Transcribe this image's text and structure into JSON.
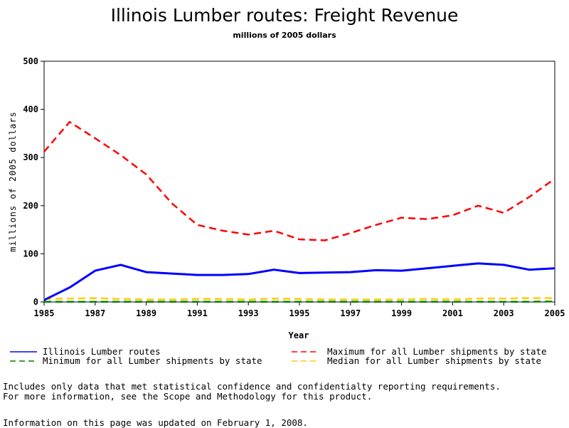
{
  "chart_data": {
    "type": "line",
    "title": "Illinois Lumber routes: Freight Revenue",
    "subtitle": "millions of 2005 dollars",
    "xlabel": "Year",
    "ylabel": "millions of 2005 dollars",
    "xlim": [
      1985,
      2005
    ],
    "ylim": [
      0,
      500
    ],
    "x_ticks": [
      "1985",
      "1987",
      "1989",
      "1991",
      "1993",
      "1995",
      "1997",
      "1999",
      "2001",
      "2003",
      "2005"
    ],
    "y_ticks": [
      "0",
      "100",
      "200",
      "300",
      "400",
      "500"
    ],
    "grid": false,
    "legend_placement": "bottom",
    "x": [
      1985,
      1986,
      1987,
      1988,
      1989,
      1990,
      1991,
      1992,
      1993,
      1994,
      1995,
      1996,
      1997,
      1998,
      1999,
      2000,
      2001,
      2002,
      2003,
      2004,
      2005
    ],
    "series": [
      {
        "name": "Illinois Lumber routes",
        "color": "#0000ff",
        "style": "solid",
        "values": [
          4,
          30,
          65,
          77,
          62,
          59,
          56,
          56,
          58,
          67,
          60,
          61,
          62,
          66,
          65,
          70,
          75,
          80,
          77,
          67,
          70
        ]
      },
      {
        "name": "Maximum for all Lumber shipments by state",
        "color": "#ff0000",
        "style": "dashed",
        "values": [
          312,
          374,
          340,
          305,
          265,
          205,
          160,
          148,
          140,
          148,
          130,
          128,
          143,
          160,
          175,
          172,
          180,
          200,
          185,
          218,
          256
        ]
      },
      {
        "name": "Minimum for all Lumber shipments by state",
        "color": "#008000",
        "style": "dashed",
        "values": [
          0.5,
          0.5,
          0.5,
          0.5,
          0.5,
          0.5,
          0.5,
          0.5,
          0.5,
          0.5,
          0.5,
          0.5,
          0.5,
          0.5,
          0.5,
          0.5,
          0.5,
          0.5,
          0.5,
          0.5,
          1
        ]
      },
      {
        "name": "Median for all Lumber shipments by state",
        "color": "#ffcc00",
        "style": "dashed",
        "values": [
          6,
          7,
          8,
          6,
          5,
          5,
          6,
          6,
          5,
          7,
          6,
          5,
          5,
          5,
          5,
          6,
          5,
          7,
          7,
          8,
          8
        ]
      }
    ]
  },
  "footnotes": {
    "line1": "Includes only data that met statistical confidence and confidentialty reporting requirements.",
    "line2": "For more information, see the Scope and Methodology for this product.",
    "updated": "Information on this page was updated on February 1, 2008."
  }
}
